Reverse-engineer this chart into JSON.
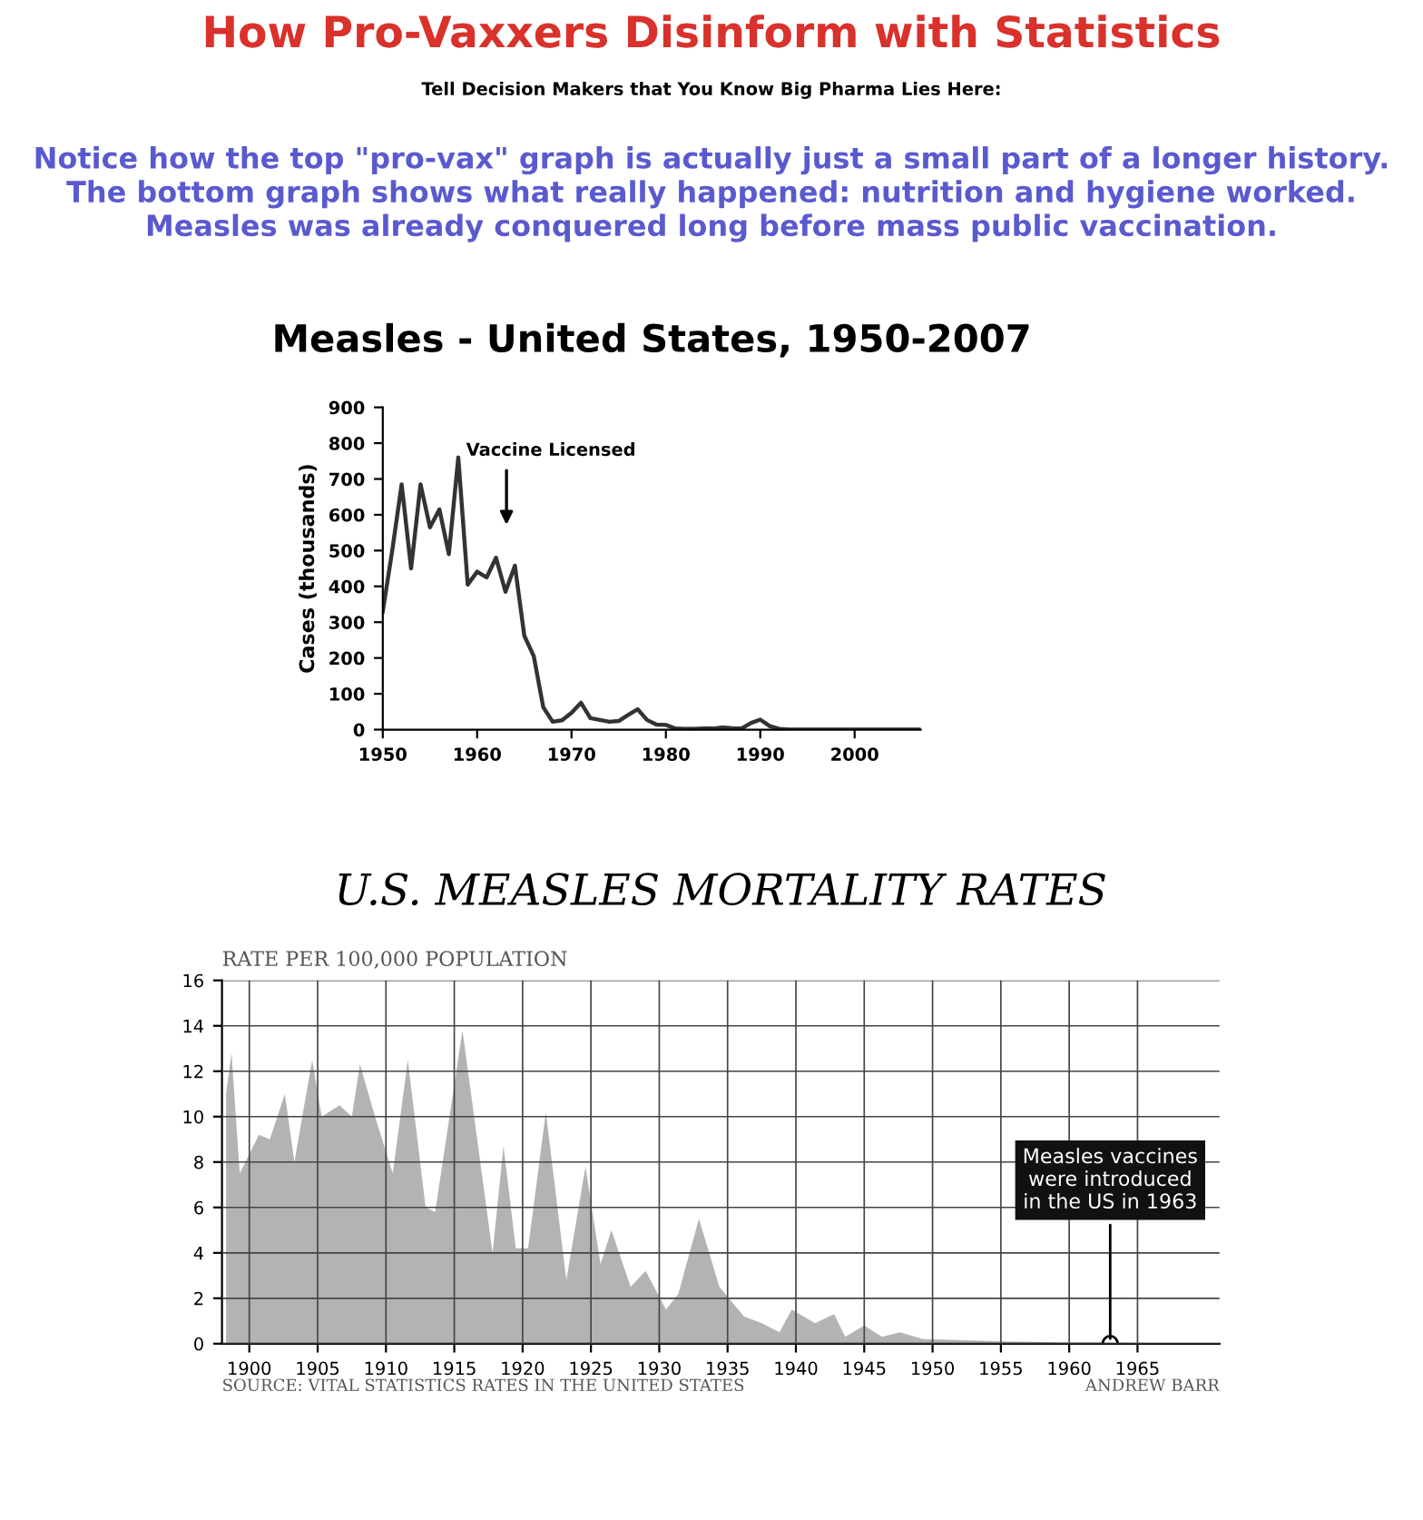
{
  "chart_data": [
    {
      "type": "other",
      "title": "How Pro-Vaxxers Disinform with Statistics",
      "annotations": [
        "Tell Decision Makers that You Know Big Pharma Lies Here:",
        "Notice how the top \"pro-vax\" graph is actually just a small part of a longer history.\nThe bottom graph shows what really happened: nutrition and hygiene worked.\nMeasles was already conquered long before mass public vaccination."
      ]
    },
    {
      "type": "line",
      "title": "Measles - United States, 1950-2007",
      "ylabel": "Cases (thousands)",
      "x": [
        1950,
        1951,
        1952,
        1953,
        1954,
        1955,
        1956,
        1957,
        1958,
        1959,
        1960,
        1961,
        1962,
        1963,
        1964,
        1965,
        1966,
        1967,
        1968,
        1969,
        1970,
        1971,
        1972,
        1973,
        1974,
        1975,
        1976,
        1977,
        1978,
        1979,
        1980,
        1981,
        1982,
        1983,
        1984,
        1985,
        1986,
        1987,
        1988,
        1989,
        1990,
        1991,
        1992,
        1993,
        1995,
        2000,
        2007
      ],
      "values": [
        330,
        500,
        685,
        450,
        685,
        565,
        615,
        490,
        760,
        405,
        441,
        425,
        480,
        385,
        458,
        262,
        205,
        63,
        22,
        26,
        47,
        75,
        32,
        27,
        22,
        24,
        41,
        57,
        27,
        14,
        13,
        3,
        2,
        2,
        3,
        3,
        6,
        4,
        3,
        18,
        28,
        10,
        2,
        0,
        0,
        0,
        0
      ],
      "color": "#333333",
      "xlim": [
        1950,
        2007
      ],
      "ylim": [
        0,
        900
      ],
      "xticks": [
        1950,
        1960,
        1970,
        1980,
        1990,
        2000
      ],
      "yticks": [
        0,
        100,
        200,
        300,
        400,
        500,
        600,
        700,
        800,
        900
      ],
      "annotations": [
        "Vaccine Licensed"
      ]
    },
    {
      "type": "area",
      "title": "U.S. MEASLES MORTALITY RATES",
      "ylabel": "RATE PER 100,000 POPULATION",
      "x": [
        1898.3,
        1898.7,
        1899.3,
        1900.7,
        1901.5,
        1902.6,
        1903.3,
        1904.6,
        1905.3,
        1906.6,
        1907.5,
        1908.1,
        1909.2,
        1910.5,
        1911.6,
        1912.9,
        1913.6,
        1915.6,
        1916.9,
        1917.8,
        1918.6,
        1919.5,
        1920.4,
        1921.7,
        1923.2,
        1924.6,
        1925.7,
        1926.5,
        1927.9,
        1929,
        1930.5,
        1931.4,
        1932.9,
        1934.4,
        1936.2,
        1937.5,
        1938.8,
        1939.7,
        1941.4,
        1942.8,
        1943.6,
        1945,
        1946.3,
        1947.6,
        1949.3,
        1955,
        1960,
        1963,
        1970
      ],
      "values": [
        11,
        12.8,
        7.5,
        9.2,
        9,
        11,
        8,
        12.5,
        10,
        10.5,
        10,
        12.3,
        10,
        7.5,
        12.5,
        6,
        5.8,
        13.8,
        8,
        4,
        8.7,
        4.2,
        4.2,
        10.2,
        2.8,
        7.8,
        3.5,
        5,
        2.5,
        3.2,
        1.5,
        2.2,
        5.5,
        2.5,
        1.2,
        0.9,
        0.5,
        1.5,
        0.9,
        1.3,
        0.3,
        0.8,
        0.3,
        0.5,
        0.2,
        0.1,
        0.05,
        0.05,
        0
      ],
      "color": "#b3b3b3",
      "xlim": [
        1898,
        1971
      ],
      "ylim": [
        0,
        16
      ],
      "xticks": [
        1900,
        1905,
        1910,
        1915,
        1920,
        1925,
        1930,
        1935,
        1940,
        1945,
        1950,
        1955,
        1960,
        1965
      ],
      "yticks": [
        0,
        2,
        4,
        6,
        8,
        10,
        12,
        14,
        16
      ],
      "grid": true,
      "annotations": [
        {
          "text": "Measles vaccines\nwere introduced\nin the US in 1963",
          "x": 1963,
          "y": 0
        },
        "SOURCE: VITAL STATISTICS RATES IN THE UNITED STATES",
        "ANDREW BARR"
      ]
    }
  ]
}
